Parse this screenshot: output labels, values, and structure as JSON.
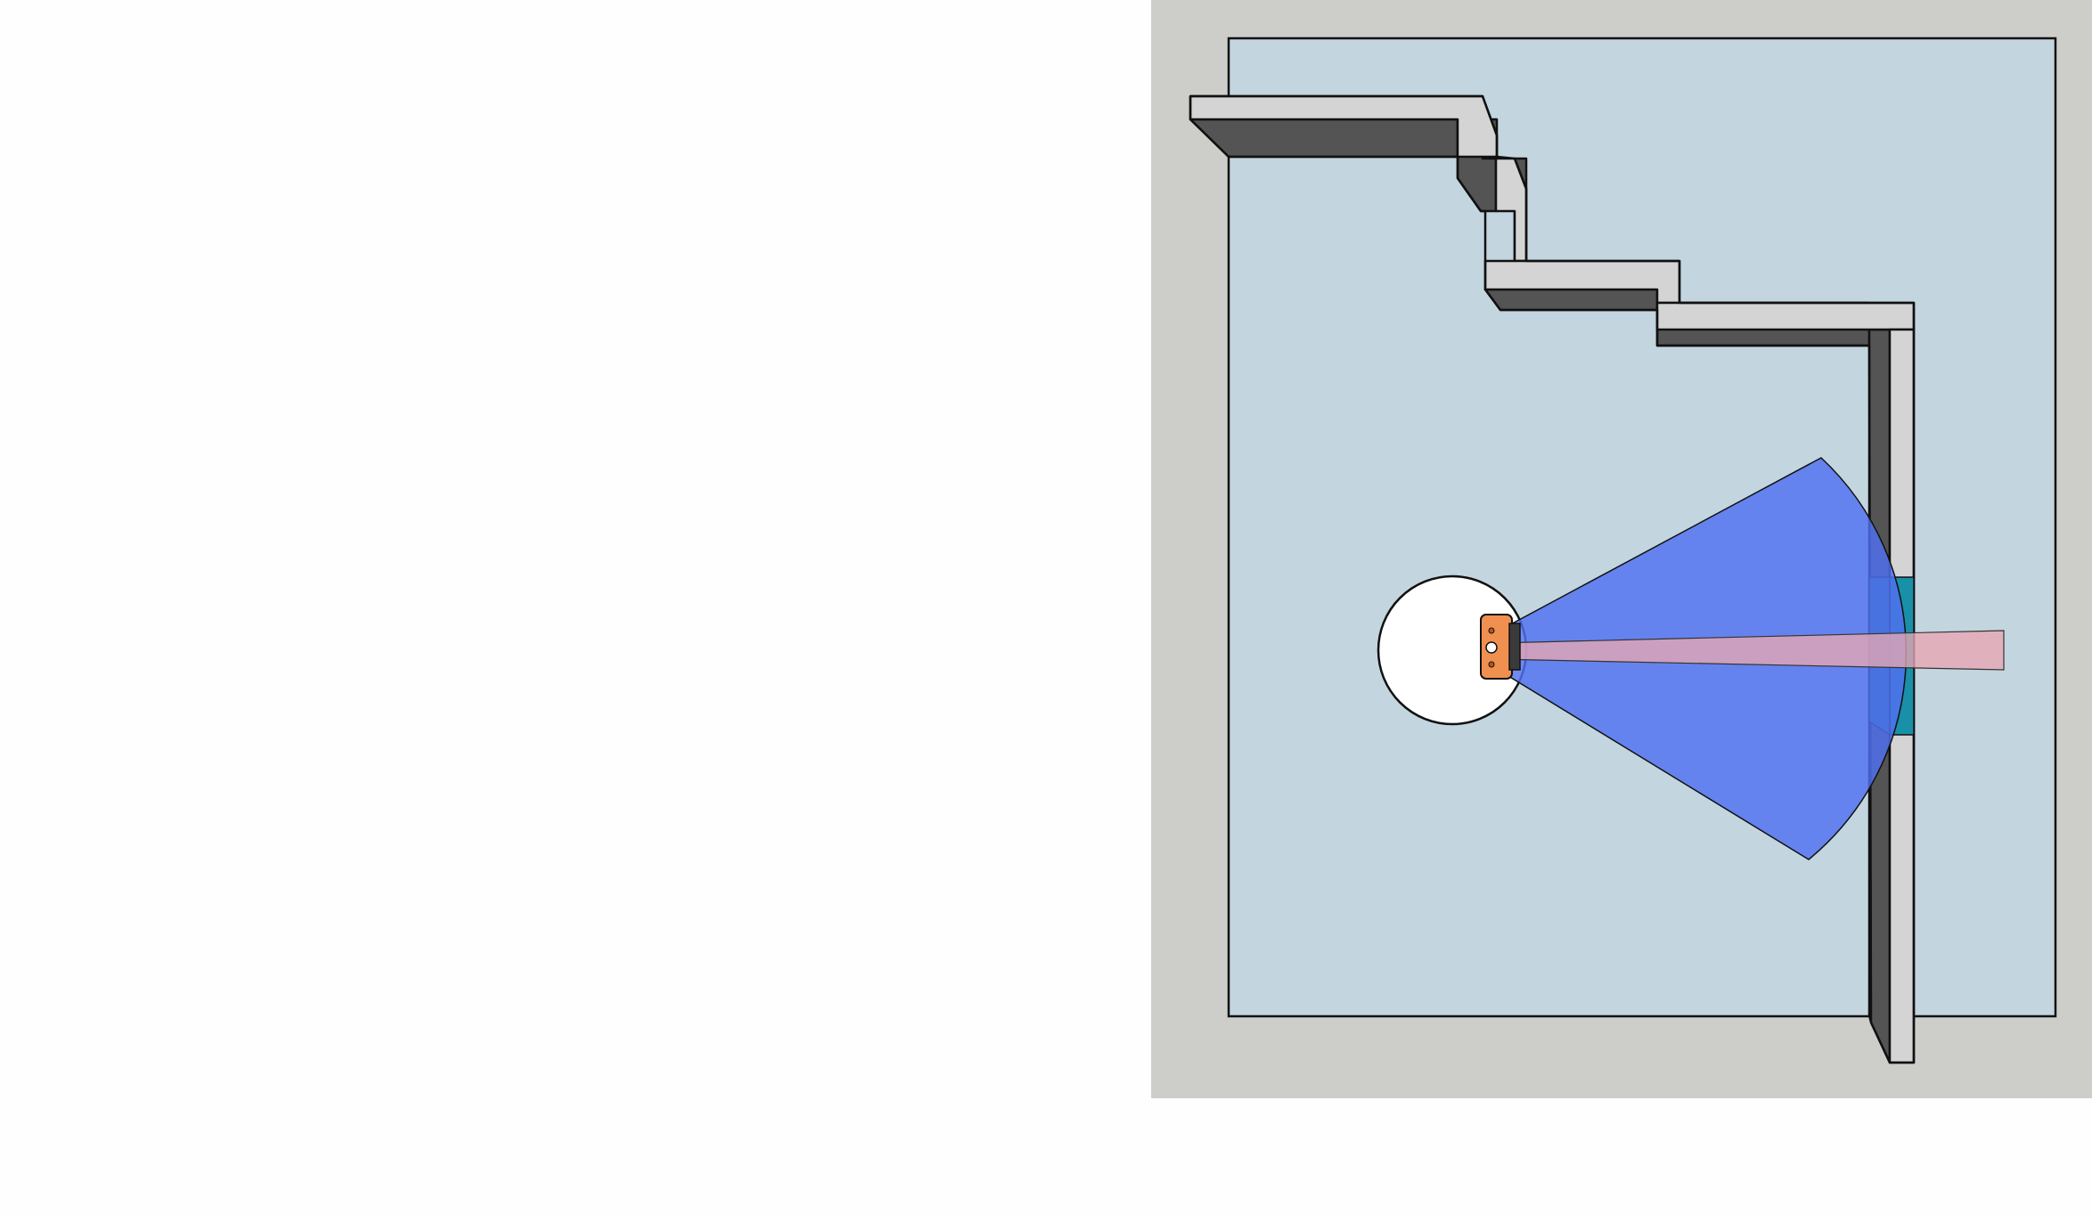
{
  "scene": {
    "kind": "top-down robot sensor view",
    "colors": {
      "page_background": "#fefefe",
      "viewport_background": "#cdcdc9",
      "floor": "#c3d5df",
      "wall_top": "#d4d4d4",
      "wall_side": "#545454",
      "glass_panel": "#1a8fa8",
      "lidar_fan": "#4f70f2",
      "lidar_beam": "#e8a6b4",
      "robot_body": "#f09050",
      "robot_base": "#ffffff",
      "outline": "#111111"
    },
    "icons": {
      "robot": "robot-icon"
    },
    "sensor": {
      "fan_type": "wide-angle range sensor",
      "beam_type": "narrow forward beam"
    }
  }
}
